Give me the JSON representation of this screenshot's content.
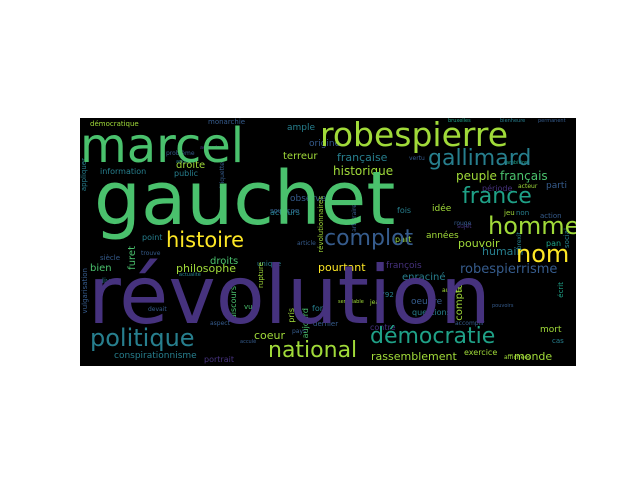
{
  "colors": {
    "purple": "#46327e",
    "blue": "#365c8d",
    "teal": "#277f8e",
    "cyan": "#1fa187",
    "green": "#4ac16d",
    "lime": "#a0da39",
    "yellow": "#fde725"
  },
  "words": {
    "revolution": "révolution",
    "gauchet": "gauchet",
    "marcel": "marcel",
    "robespierre": "robespierre",
    "histoire": "histoire",
    "politique": "politique",
    "democratie": "démocratie",
    "homme": "homme",
    "france": "france",
    "gallimard": "gallimard",
    "complot": "complot",
    "nom": "nom",
    "national": "national",
    "robespierrisme": "robespierrisme",
    "philosophe": "philosophe",
    "pourtant": "pourtant",
    "rassemblement": "rassemblement",
    "monde": "monde",
    "francaise": "française",
    "historique": "historique",
    "terreur": "terreur",
    "droite": "droite",
    "droits": "droits",
    "peuple": "peuple",
    "francais": "français",
    "humain": "humain",
    "pouvoir": "pouvoir",
    "annees": "années",
    "furet": "furet",
    "bien": "bien",
    "coeur": "coeur",
    "conspirationnisme": "conspirationnisme",
    "portrait": "portrait",
    "democratique": "démocratique",
    "monarchie": "monarchie",
    "ample": "ample",
    "origine": "origine",
    "information": "information",
    "public": "public",
    "observe": "observe",
    "acteurs": "acteurs",
    "point": "point",
    "idee": "idée",
    "part": "part",
    "periode": "période",
    "parti": "parti",
    "sujet": "sujet",
    "fois": "fois",
    "francois": "françois",
    "enracine": "enraciné",
    "compte": "compte",
    "oeuvre": "oeuvre",
    "questions": "questions",
    "dernier": "dernier",
    "contre": "contre",
    "fort": "fort",
    "mort": "mort",
    "exercice": "exercice",
    "siecle": "siècle",
    "livres": "livres",
    "vue": "vue",
    "rupture": "rupture",
    "unique": "unique",
    "discours": "discours",
    "revolutionnaires": "révolutionnaires",
    "jean": "jean",
    "aujourd": "aujourd",
    "pris": "pris",
    "devait": "devait",
    "aspect": "aspect",
    "probleme": "problème",
    "angle": "angle",
    "soupcon": "soupçon",
    "rouge": "rouge",
    "action": "action",
    "pan": "pan",
    "cas": "cas",
    "ambition": "ambition",
    "acteur": "acteur",
    "vertu": "vertu",
    "pays": "pays",
    "autour": "autour",
    "accomplir": "accomplir",
    "affichees": "affichées",
    "jeu": "jeu",
    "non": "non",
    "annee": "1792",
    "brexit": "brexit",
    "trouve": "trouve",
    "actualite": "actualité",
    "article": "article",
    "accule": "acculé",
    "ecrit": "écrit",
    "etiquette": "étiquette",
    "vulgarisation": "vulgarisation",
    "arbitraire": "arbitraire",
    "semblable": "semblable",
    "pouvoirs": "pouvoirs",
    "social": "social",
    "appliquer": "appliquer",
    "bruxelles": "bruxelles",
    "accorde": "accorde",
    "bienheure": "bienheure",
    "permanent": "permanent"
  }
}
